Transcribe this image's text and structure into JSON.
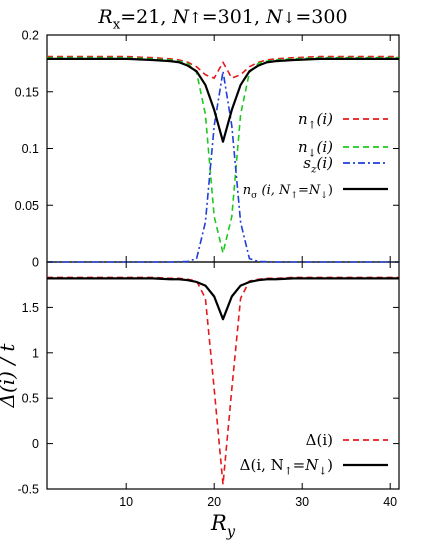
{
  "chart_data": [
    {
      "type": "line",
      "title": "Rx=21, N↑=301, N↓=300",
      "title_parts": [
        "R",
        "x",
        "=21, ",
        "N",
        "↑",
        "=301, ",
        "N",
        "↓",
        "=300"
      ],
      "xlim": [
        1,
        41
      ],
      "ylim": [
        0,
        0.2
      ],
      "yticks": [
        0,
        0.05,
        0.1,
        0.15,
        0.2
      ],
      "ytick_labels": [
        "0",
        "0.05",
        "0.1",
        "0.15",
        "0.2"
      ],
      "legend_position": "right",
      "series": [
        {
          "name": "n↑(i)",
          "name_parts": [
            "n",
            "↑",
            "(i)"
          ],
          "color": "#e41a1c",
          "style": "dashed",
          "x": [
            1,
            5,
            10,
            13,
            15,
            16,
            17,
            18,
            19,
            20,
            21,
            22,
            23,
            24,
            25,
            26,
            27,
            29,
            32,
            37,
            41
          ],
          "y": [
            0.181,
            0.181,
            0.181,
            0.18,
            0.179,
            0.178,
            0.176,
            0.172,
            0.165,
            0.162,
            0.176,
            0.162,
            0.165,
            0.172,
            0.176,
            0.178,
            0.179,
            0.18,
            0.181,
            0.181,
            0.181
          ]
        },
        {
          "name": "n↓(i)",
          "name_parts": [
            "n",
            "↓",
            "(i)"
          ],
          "color": "#1ec81e",
          "style": "dashed",
          "x": [
            1,
            5,
            10,
            13,
            15,
            16,
            17,
            18,
            19,
            20,
            21,
            22,
            23,
            24,
            25,
            26,
            27,
            29,
            32,
            37,
            41
          ],
          "y": [
            0.18,
            0.18,
            0.18,
            0.179,
            0.178,
            0.177,
            0.175,
            0.167,
            0.13,
            0.04,
            0.008,
            0.04,
            0.13,
            0.167,
            0.175,
            0.177,
            0.178,
            0.179,
            0.18,
            0.18,
            0.18
          ]
        },
        {
          "name": "sz(i)",
          "name_parts": [
            "s",
            "z",
            "(i)"
          ],
          "color": "#1f3fd8",
          "style": "dashdot",
          "x": [
            1,
            10,
            15,
            17,
            18,
            19,
            20,
            21,
            22,
            23,
            24,
            25,
            27,
            32,
            41
          ],
          "y": [
            0,
            0,
            0,
            0.0005,
            0.003,
            0.035,
            0.12,
            0.168,
            0.12,
            0.035,
            0.003,
            0.0005,
            0,
            0,
            0
          ]
        },
        {
          "name": "nσ (i, N↑=N↓)",
          "name_parts": [
            "n",
            "σ",
            " (i, N",
            "↑",
            "=N",
            "↓",
            ")"
          ],
          "color": "#000000",
          "style": "solid",
          "x": [
            1,
            5,
            10,
            13,
            15,
            16,
            17,
            18,
            19,
            20,
            21,
            22,
            23,
            24,
            25,
            26,
            27,
            29,
            32,
            37,
            41
          ],
          "y": [
            0.179,
            0.179,
            0.179,
            0.178,
            0.177,
            0.176,
            0.173,
            0.168,
            0.156,
            0.134,
            0.106,
            0.134,
            0.156,
            0.168,
            0.173,
            0.176,
            0.177,
            0.178,
            0.179,
            0.179,
            0.179
          ]
        }
      ]
    },
    {
      "type": "line",
      "xlabel": "Ry",
      "xlabel_parts": [
        "R",
        "y"
      ],
      "ylabel": "Δ(i) / t",
      "xlim": [
        1,
        41
      ],
      "ylim": [
        -0.5,
        2.0
      ],
      "xticks": [
        10,
        20,
        30,
        40
      ],
      "xtick_labels": [
        "10",
        "20",
        "30",
        "40"
      ],
      "yticks": [
        -0.5,
        0,
        0.5,
        1,
        1.5
      ],
      "ytick_labels": [
        "-0.5",
        "0",
        "0.5",
        "1",
        "1.5"
      ],
      "legend_position": "bottom-right",
      "series": [
        {
          "name": "Δ(i)",
          "name_parts": [
            "Δ(i)"
          ],
          "color": "#e41a1c",
          "style": "dashed",
          "x": [
            1,
            5,
            10,
            13,
            15,
            16,
            17,
            18,
            19,
            20,
            21,
            22,
            23,
            24,
            25,
            26,
            27,
            29,
            32,
            37,
            41
          ],
          "y": [
            1.83,
            1.83,
            1.83,
            1.83,
            1.82,
            1.82,
            1.81,
            1.79,
            1.6,
            0.6,
            -0.45,
            0.6,
            1.6,
            1.79,
            1.81,
            1.82,
            1.82,
            1.83,
            1.83,
            1.83,
            1.83
          ]
        },
        {
          "name": "Δ(i, N↑=N↓)",
          "name_parts": [
            "Δ(i, N",
            "↑",
            "=N",
            "↓",
            ")"
          ],
          "color": "#000000",
          "style": "solid",
          "x": [
            1,
            5,
            10,
            13,
            15,
            16,
            17,
            18,
            19,
            20,
            21,
            22,
            23,
            24,
            25,
            26,
            27,
            29,
            32,
            37,
            41
          ],
          "y": [
            1.82,
            1.82,
            1.82,
            1.82,
            1.81,
            1.81,
            1.8,
            1.78,
            1.74,
            1.62,
            1.37,
            1.62,
            1.74,
            1.78,
            1.8,
            1.81,
            1.81,
            1.82,
            1.82,
            1.82,
            1.82
          ]
        }
      ]
    }
  ]
}
